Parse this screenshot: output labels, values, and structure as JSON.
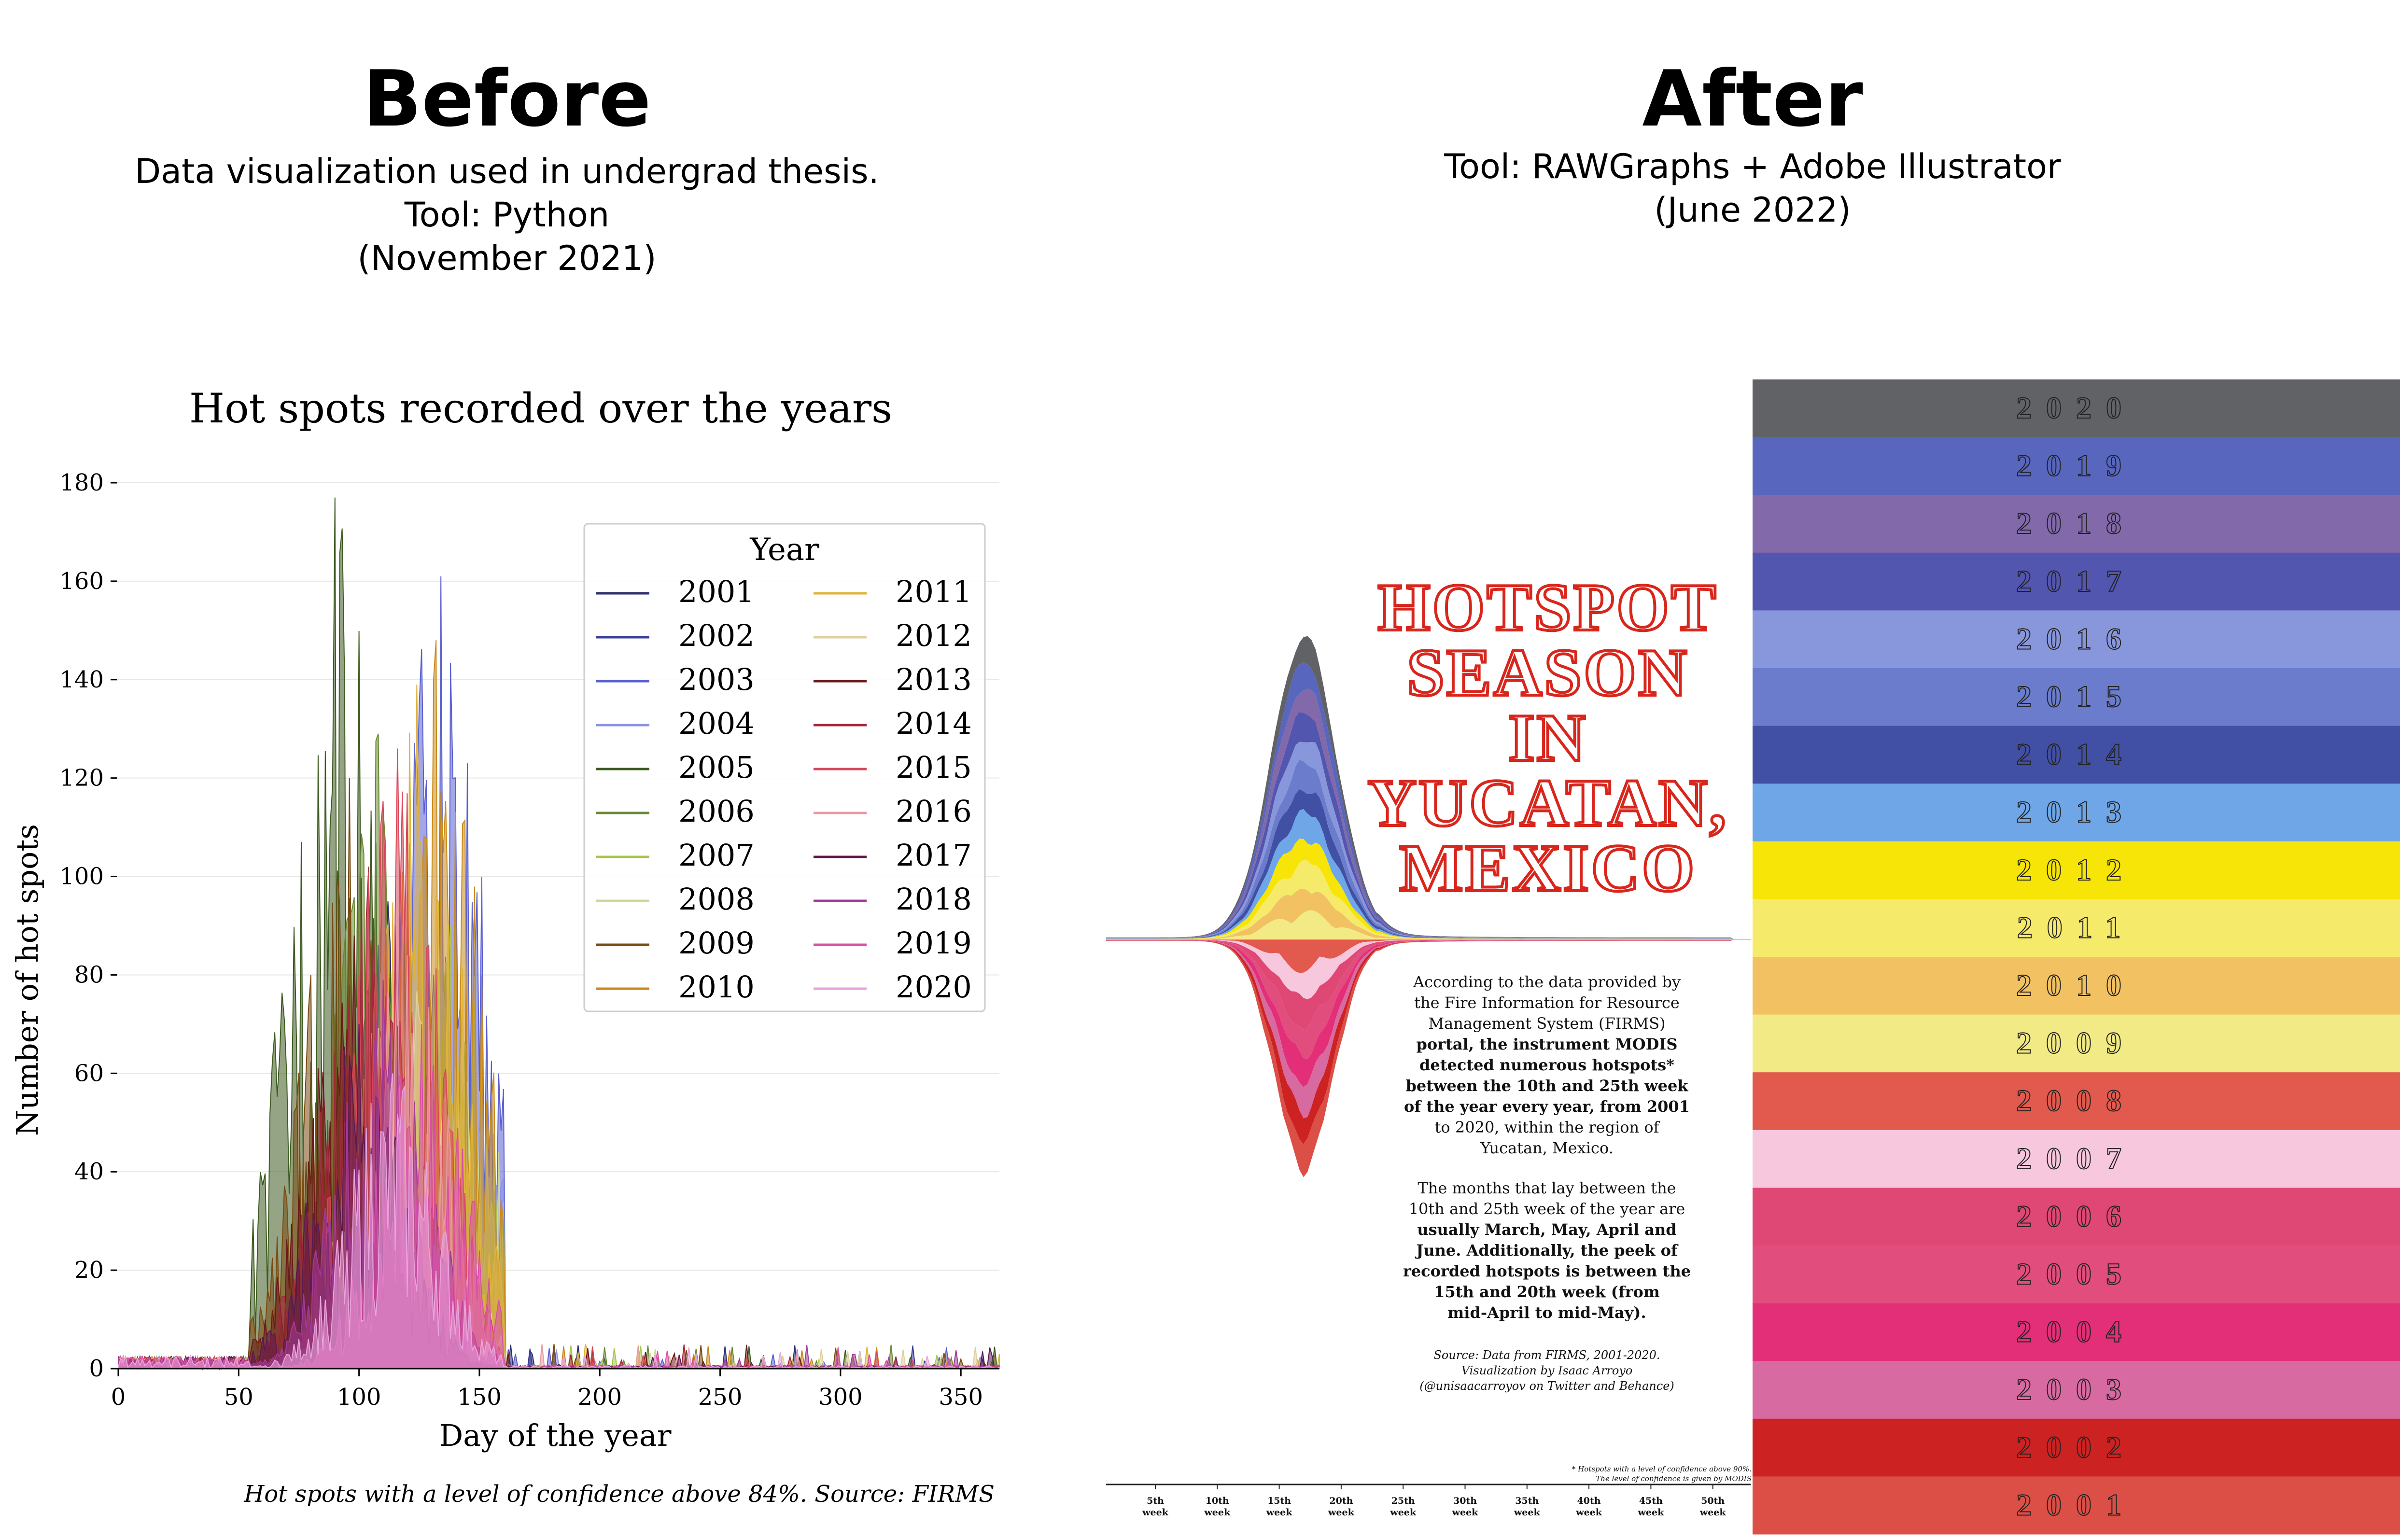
{
  "before": {
    "heading": "Before",
    "subtitle_lines": [
      "Data visualization used in undergrad thesis.",
      "Tool: Python",
      "(November 2021)"
    ]
  },
  "after": {
    "heading": "After",
    "subtitle_lines": [
      "Tool: RAWGraphs + Adobe Illustrator",
      "(June 2022)"
    ]
  },
  "chart_data": [
    {
      "type": "area",
      "title": "Hot spots recorded over the years",
      "xlabel": "Day of the year",
      "ylabel": "Number of hot spots",
      "xlim": [
        0,
        366
      ],
      "ylim": [
        0,
        180
      ],
      "xticks": [
        0,
        50,
        100,
        150,
        200,
        250,
        300,
        350
      ],
      "yticks": [
        0,
        20,
        40,
        60,
        80,
        100,
        120,
        140,
        160,
        180
      ],
      "grid": "horizontal",
      "legend": {
        "title": "Year",
        "placement": "top-right",
        "columns": 2
      },
      "caption": "Hot spots with a level of confidence above 84%. Source: FIRMS",
      "series": [
        {
          "name": "2001",
          "color": "#2e2f6b",
          "peak_day": 112,
          "peak_value": 95
        },
        {
          "name": "2002",
          "color": "#3a3d99",
          "peak_day": 106,
          "peak_value": 90
        },
        {
          "name": "2003",
          "color": "#5a5fcf",
          "peak_day": 134,
          "peak_value": 161
        },
        {
          "name": "2004",
          "color": "#8c92e6",
          "peak_day": 150,
          "peak_value": 49
        },
        {
          "name": "2005",
          "color": "#3c5a1f",
          "peak_day": 90,
          "peak_value": 177
        },
        {
          "name": "2006",
          "color": "#6a8a33",
          "peak_day": 108,
          "peak_value": 129
        },
        {
          "name": "2007",
          "color": "#a8c64d",
          "peak_day": 138,
          "peak_value": 90
        },
        {
          "name": "2008",
          "color": "#cfd89a",
          "peak_day": 142,
          "peak_value": 65
        },
        {
          "name": "2009",
          "color": "#7a4b12",
          "peak_day": 96,
          "peak_value": 120
        },
        {
          "name": "2010",
          "color": "#c98a1a",
          "peak_day": 132,
          "peak_value": 148
        },
        {
          "name": "2011",
          "color": "#e0b33b",
          "peak_day": 124,
          "peak_value": 139
        },
        {
          "name": "2012",
          "color": "#e0cfa0",
          "peak_day": 118,
          "peak_value": 90
        },
        {
          "name": "2013",
          "color": "#6b1a1a",
          "peak_day": 98,
          "peak_value": 88
        },
        {
          "name": "2014",
          "color": "#a3283a",
          "peak_day": 104,
          "peak_value": 102
        },
        {
          "name": "2015",
          "color": "#d9475a",
          "peak_day": 116,
          "peak_value": 126
        },
        {
          "name": "2016",
          "color": "#e89aa2",
          "peak_day": 120,
          "peak_value": 84
        },
        {
          "name": "2017",
          "color": "#5b1a4e",
          "peak_day": 100,
          "peak_value": 70
        },
        {
          "name": "2018",
          "color": "#a23a98",
          "peak_day": 110,
          "peak_value": 79
        },
        {
          "name": "2019",
          "color": "#d94fa8",
          "peak_day": 126,
          "peak_value": 70
        },
        {
          "name": "2020",
          "color": "#e9a3dd",
          "peak_day": 114,
          "peak_value": 60
        }
      ]
    },
    {
      "type": "area",
      "subtype": "streamgraph",
      "title": "HOTSPOT SEASON IN YUCATAN, MEXICO",
      "x_ticks": [
        "5th week",
        "10th week",
        "15th week",
        "20th week",
        "25th week",
        "30th week",
        "35th week",
        "40th week",
        "45th week",
        "50th week"
      ],
      "legend": {
        "placement": "right",
        "type": "color bands"
      },
      "years_top_to_bottom": [
        "2020",
        "2019",
        "2018",
        "2017",
        "2016",
        "2015",
        "2014",
        "2013",
        "2012",
        "2011",
        "2010",
        "2009",
        "2008",
        "2007",
        "2006",
        "2005",
        "2004",
        "2003",
        "2002",
        "2001"
      ],
      "colors_top_to_bottom": [
        "#616266",
        "#5866be",
        "#8269aa",
        "#5356af",
        "#8897db",
        "#6a7ccb",
        "#4150a4",
        "#6ea6e8",
        "#f6e507",
        "#f6ea6b",
        "#f2c262",
        "#f1ea85",
        "#e15a4d",
        "#f7c7dd",
        "#df4874",
        "#e14e7d",
        "#e22f78",
        "#d86aa2",
        "#cd2222",
        "#db4f47"
      ],
      "text_blocks": {
        "p1": [
          "According to the data provided by",
          "the Fire Information for Resource",
          "Management System (FIRMS)",
          "portal, the instrument MODIS",
          "detected numerous hotspots*",
          "between the 10th and 25th week",
          "of the year every year, from 2001",
          "to 2020, within the region of",
          "Yucatan, Mexico."
        ],
        "p2": [
          "The months that lay between the",
          "10th and 25th week of the year are",
          "usually March, May, April and",
          "June. Additionally, the peek of",
          "recorded hotspots is between the",
          "15th and 20th week (from",
          "mid-April to mid-May)."
        ],
        "source": [
          "Source: Data from FIRMS, 2001-2020.",
          "Visualization by Isaac Arroyo",
          "(@unisaacarroyov on Twitter and Behance)"
        ],
        "footnote": [
          "* Hotspots with a level of confidence above 90%.",
          "The level of confidence is given by MODIS"
        ]
      }
    }
  ]
}
